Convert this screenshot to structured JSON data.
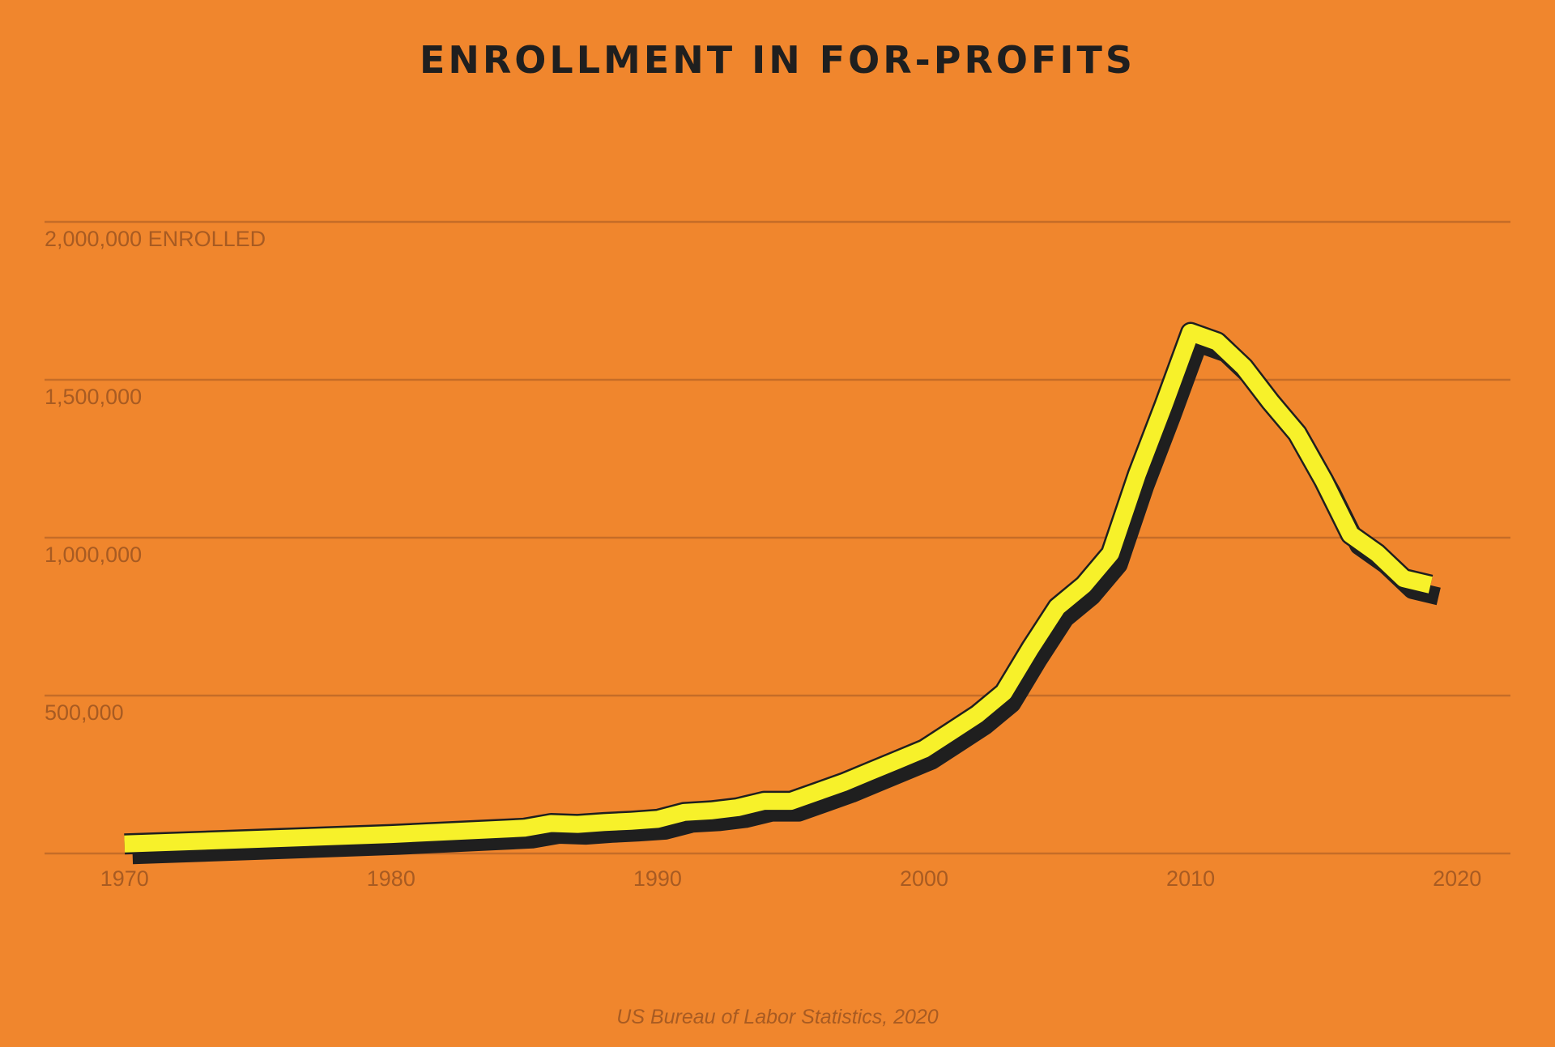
{
  "chart_data": {
    "type": "line",
    "title": "ENROLLMENT IN FOR-PROFITS",
    "ylabel_suffix": "ENROLLED",
    "source": "US Bureau of Labor Statistics, 2020",
    "xlim": [
      1967,
      2022
    ],
    "ylim": [
      0,
      2000000
    ],
    "x_ticks": [
      1970,
      1980,
      1990,
      2000,
      2010,
      2020
    ],
    "y_ticks": [
      {
        "value": 500000,
        "label": "500,000"
      },
      {
        "value": 1000000,
        "label": "1,000,000"
      },
      {
        "value": 1500000,
        "label": "1,500,000"
      },
      {
        "value": 2000000,
        "label": "2,000,000 ENROLLED"
      }
    ],
    "grid": true,
    "colors": {
      "background": "#f0862d",
      "line": "#f7f12a",
      "line_outline": "#1f1f1f",
      "shadow": "#1f1f1f",
      "grid": "#c56c27",
      "axis_text": "#a85b22",
      "title": "#1f1f1f"
    },
    "series": [
      {
        "x": [
          1970,
          1975,
          1980,
          1985,
          1986,
          1987,
          1988,
          1989,
          1990,
          1991,
          1992,
          1993,
          1994,
          1995,
          1996,
          1997,
          1998,
          1999,
          2000,
          2001,
          2002,
          2003,
          2004,
          2005,
          2006,
          2007,
          2008,
          2009,
          2010,
          2011,
          2012,
          2013,
          2014,
          2015,
          2016,
          2017,
          2018,
          2019
        ],
        "y": [
          30000,
          45000,
          60000,
          80000,
          95000,
          92000,
          98000,
          102000,
          108000,
          130000,
          135000,
          145000,
          165000,
          165000,
          195000,
          225000,
          260000,
          295000,
          330000,
          385000,
          440000,
          510000,
          650000,
          780000,
          850000,
          950000,
          1200000,
          1420000,
          1650000,
          1620000,
          1540000,
          1430000,
          1330000,
          1180000,
          1010000,
          950000,
          870000,
          850000
        ]
      }
    ]
  }
}
